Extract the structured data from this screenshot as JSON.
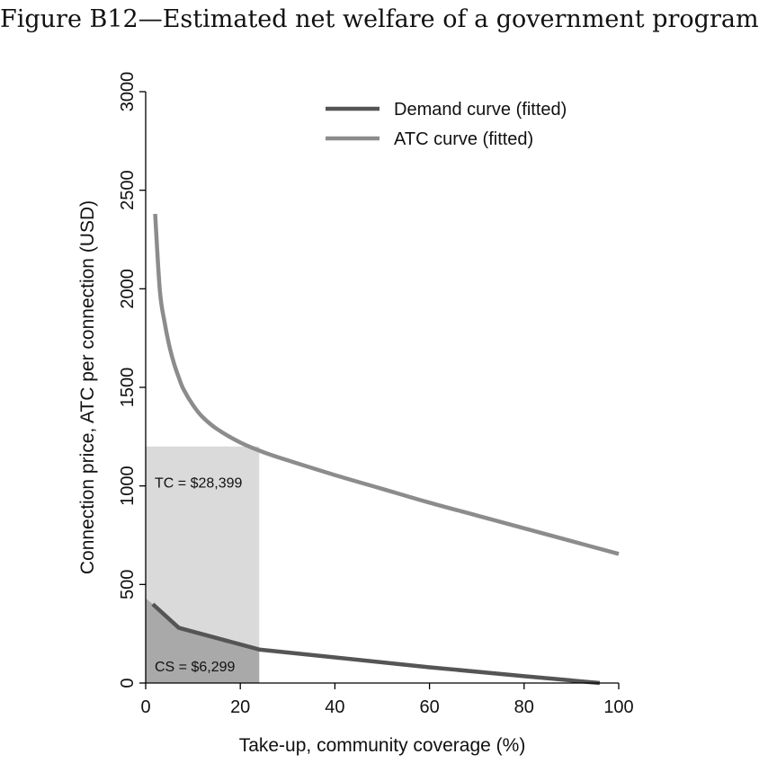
{
  "figure_title": "Figure B12—Estimated net welfare of a government program",
  "colors": {
    "demand": "#555555",
    "atc": "#8c8c8c",
    "tc_region": "#dadada",
    "cs_region": "#a9a9a9",
    "axis": "#000000",
    "background": "#ffffff"
  },
  "chart_data": {
    "type": "line",
    "title": "",
    "xlabel": "Take-up, community coverage (%)",
    "ylabel": "Connection price, ATC per connection (USD)",
    "xlim": [
      0,
      100
    ],
    "ylim": [
      0,
      3000
    ],
    "x_ticks": [
      0,
      20,
      40,
      60,
      80,
      100
    ],
    "x_tick_labels": [
      "0",
      "20",
      "40",
      "60",
      "80",
      "100"
    ],
    "y_ticks": [
      0,
      500,
      1000,
      1500,
      2000,
      2500,
      3000
    ],
    "y_tick_labels": [
      "0",
      "500",
      "1000",
      "1500",
      "2000",
      "2500",
      "3000"
    ],
    "grid": false,
    "legend_position": "top-right",
    "series": [
      {
        "name": "Demand curve (fitted)",
        "color": "#555555",
        "x": [
          1.5,
          7,
          24,
          40,
          60,
          80,
          96
        ],
        "y": [
          400,
          280,
          170,
          130,
          80,
          35,
          0
        ]
      },
      {
        "name": "ATC curve (fitted)",
        "color": "#8c8c8c",
        "x": [
          2,
          3,
          4,
          5,
          6,
          7,
          8,
          10,
          12,
          15,
          20,
          25,
          30,
          40,
          50,
          60,
          70,
          80,
          90,
          100
        ],
        "y": [
          2380,
          1990,
          1830,
          1710,
          1620,
          1550,
          1490,
          1410,
          1350,
          1290,
          1220,
          1170,
          1130,
          1055,
          985,
          915,
          850,
          785,
          720,
          655
        ]
      }
    ],
    "shaded_regions": [
      {
        "label": "TC = $28,399",
        "x_range": [
          0,
          24
        ],
        "y_range": [
          0,
          1200
        ],
        "color": "#dadada"
      },
      {
        "label": "CS = $6,299",
        "x_range": [
          0,
          24
        ],
        "boundary": "demand",
        "color": "#a9a9a9"
      }
    ]
  }
}
